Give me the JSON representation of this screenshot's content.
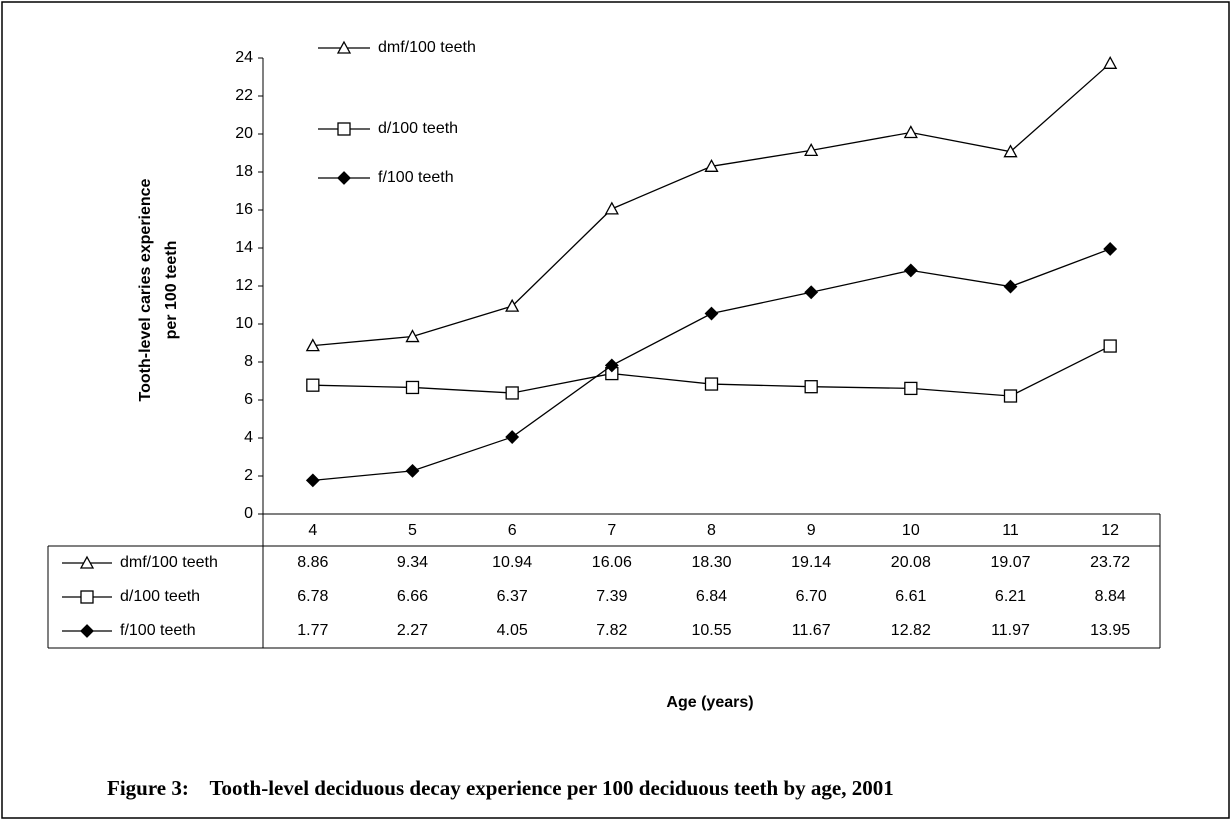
{
  "chart_data": {
    "type": "line",
    "title": "Figure 3:    Tooth-level deciduous decay experience per 100 deciduous teeth by age, 2001",
    "xlabel": "Age (years)",
    "ylabel": [
      "Tooth-level caries experience",
      "per 100 teeth"
    ],
    "categories": [
      "4",
      "5",
      "6",
      "7",
      "8",
      "9",
      "10",
      "11",
      "12"
    ],
    "ylim": [
      0,
      24
    ],
    "yticks": [
      0,
      2,
      4,
      6,
      8,
      10,
      12,
      14,
      16,
      18,
      20,
      22,
      24
    ],
    "grid": false,
    "series": [
      {
        "name": "dmf/100 teeth",
        "color": "#000000",
        "marker": "triangle-open",
        "values": [
          8.86,
          9.34,
          10.94,
          16.06,
          18.3,
          19.14,
          20.08,
          19.07,
          23.72
        ],
        "value_labels": [
          "8.86",
          "9.34",
          "10.94",
          "16.06",
          "18.30",
          "19.14",
          "20.08",
          "19.07",
          "23.72"
        ]
      },
      {
        "name": "d/100 teeth",
        "color": "#000000",
        "marker": "square-open",
        "values": [
          6.78,
          6.66,
          6.37,
          7.39,
          6.84,
          6.7,
          6.61,
          6.21,
          8.84
        ],
        "value_labels": [
          "6.78",
          "6.66",
          "6.37",
          "7.39",
          "6.84",
          "6.70",
          "6.61",
          "6.21",
          "8.84"
        ]
      },
      {
        "name": "f/100 teeth",
        "color": "#000000",
        "marker": "diamond-filled",
        "values": [
          1.77,
          2.27,
          4.05,
          7.82,
          10.55,
          11.67,
          12.82,
          11.97,
          13.95
        ],
        "value_labels": [
          "1.77",
          "2.27",
          "4.05",
          "7.82",
          "10.55",
          "11.67",
          "12.82",
          "11.97",
          "13.95"
        ]
      }
    ]
  }
}
